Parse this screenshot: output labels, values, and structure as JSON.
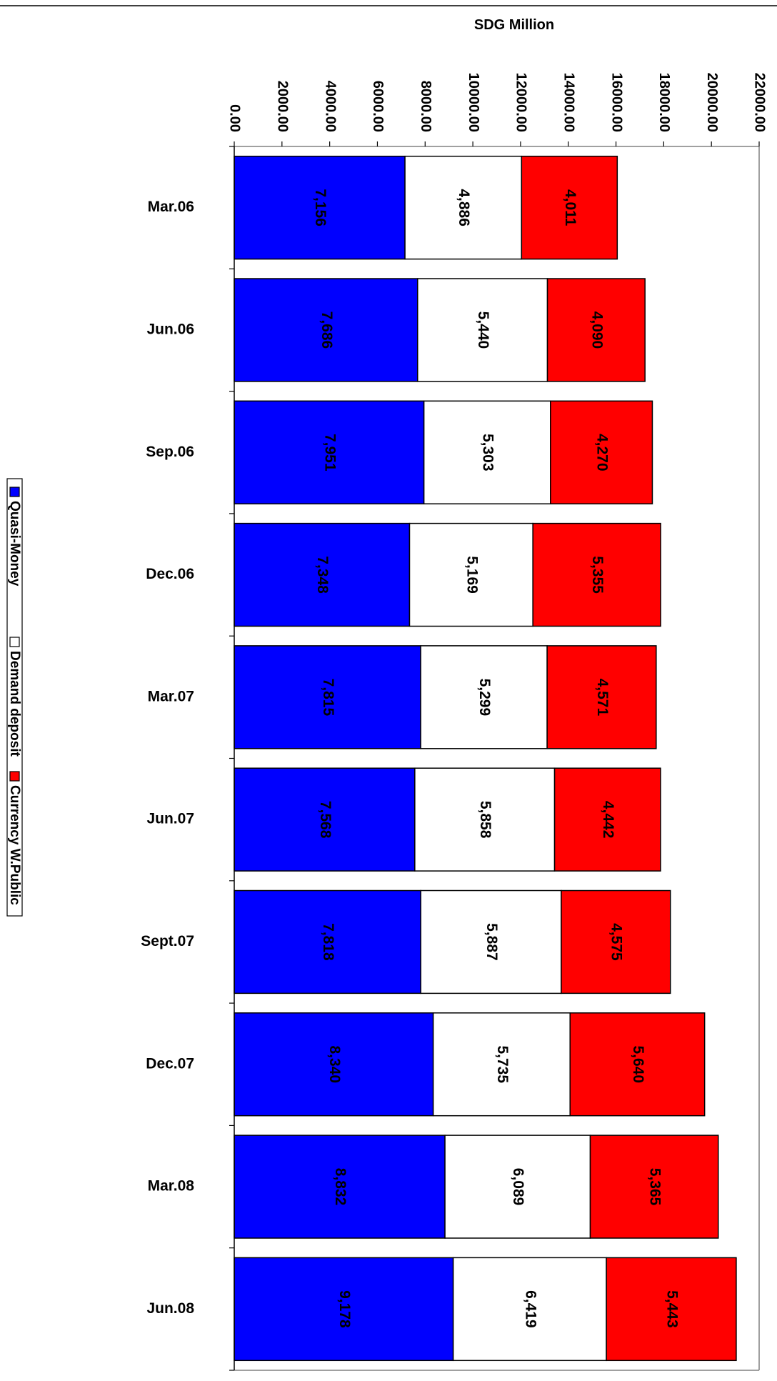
{
  "chart_data": {
    "type": "bar",
    "stacked": true,
    "orientation": "horizontal",
    "categories": [
      "Mar.06",
      "Jun.06",
      "Sep.06",
      "Dec.06",
      "Mar.07",
      "Jun.07",
      "Sept.07",
      "Dec.07",
      "Mar.08",
      "Jun.08"
    ],
    "series": [
      {
        "name": "Quasi-Money",
        "color": "#0000ff",
        "values": [
          7156,
          7686,
          7951,
          7348,
          7815,
          7568,
          7818,
          8340,
          8832,
          9178
        ],
        "labels": [
          "7,156",
          "7,686",
          "7,951",
          "7,348",
          "7,815",
          "7,568",
          "7,818",
          "8,340",
          "8,832",
          "9,178"
        ]
      },
      {
        "name": "Demand deposit",
        "color": "#ffffff",
        "values": [
          4886,
          5440,
          5303,
          5169,
          5299,
          5858,
          5887,
          5735,
          6089,
          6419
        ],
        "labels": [
          "4,886",
          "5,440",
          "5,303",
          "5,169",
          "5,299",
          "5,858",
          "5,887",
          "5,735",
          "6,089",
          "6,419"
        ]
      },
      {
        "name": "Currency W.Public",
        "color": "#ff0000",
        "values": [
          4011,
          4090,
          4270,
          5355,
          4571,
          4442,
          4575,
          5640,
          5365,
          5443
        ],
        "labels": [
          "4,011",
          "4,090",
          "4,270",
          "5,355",
          "4,571",
          "4,442",
          "4,575",
          "5,640",
          "5,365",
          "5,443"
        ]
      }
    ],
    "axis_title": "SDG Million",
    "value_axis": {
      "range": [
        0,
        22000
      ],
      "step": 2000,
      "tick_labels": [
        "0.00",
        "2000.00",
        "4000.00",
        "6000.00",
        "8000.00",
        "10000.00",
        "12000.00",
        "14000.00",
        "16000.00",
        "18000.00",
        "20000.00",
        "22000.00"
      ]
    },
    "grid": false,
    "legend_position": "left"
  }
}
